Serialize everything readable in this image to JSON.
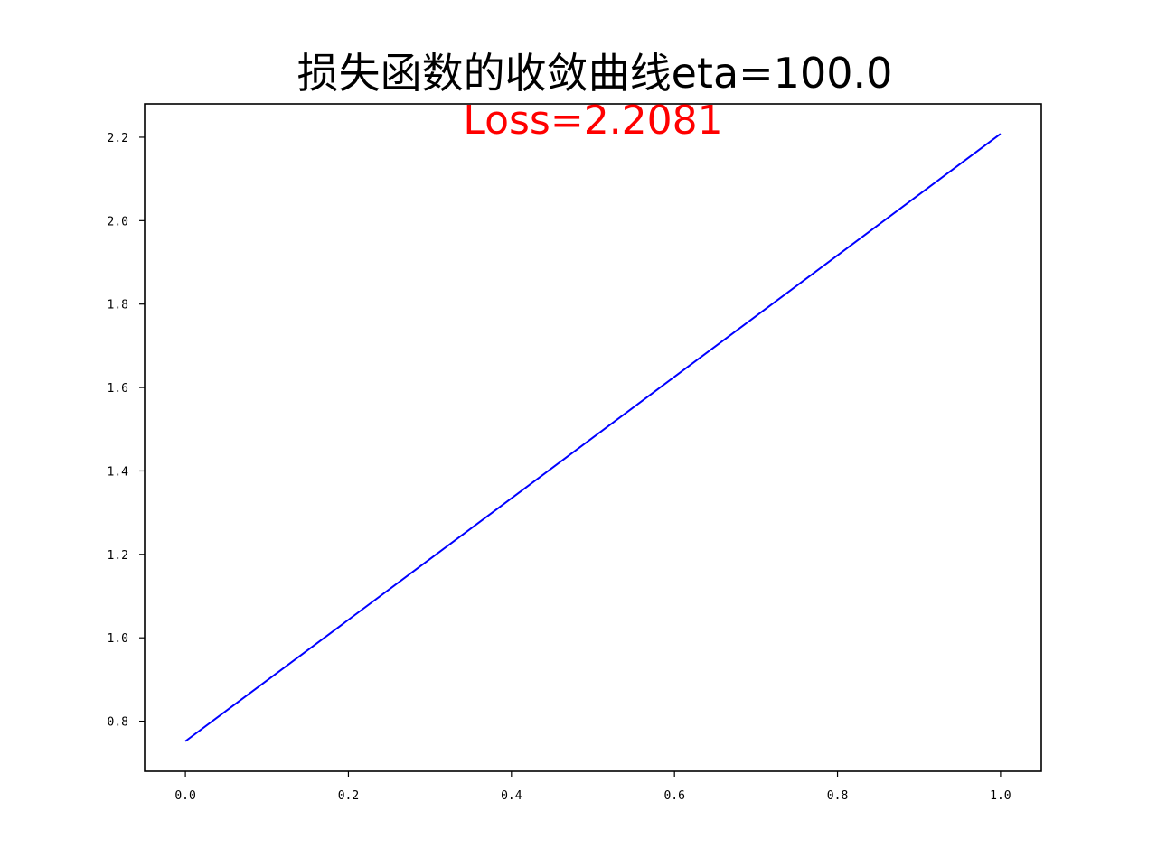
{
  "chart_data": {
    "type": "line",
    "title": "损失函数的收敛曲线eta=100.0",
    "annotation": {
      "text": "Loss=2.2081",
      "color": "#ff0000"
    },
    "xlabel": "",
    "ylabel": "",
    "xlim": [
      -0.05,
      1.05
    ],
    "ylim": [
      0.68,
      2.28
    ],
    "xticks": [
      0.0,
      0.2,
      0.4,
      0.6,
      0.8,
      1.0
    ],
    "xtick_labels": [
      "0.0",
      "0.2",
      "0.4",
      "0.6",
      "0.8",
      "1.0"
    ],
    "yticks": [
      0.8,
      1.0,
      1.2,
      1.4,
      1.6,
      1.8,
      2.0,
      2.2
    ],
    "ytick_labels": [
      "0.8",
      "1.0",
      "1.2",
      "1.4",
      "1.6",
      "1.8",
      "2.0",
      "2.2"
    ],
    "grid": false,
    "series": [
      {
        "color": "#0000ff",
        "x": [
          0.0,
          1.0
        ],
        "y": [
          0.752,
          2.2081
        ]
      }
    ]
  }
}
